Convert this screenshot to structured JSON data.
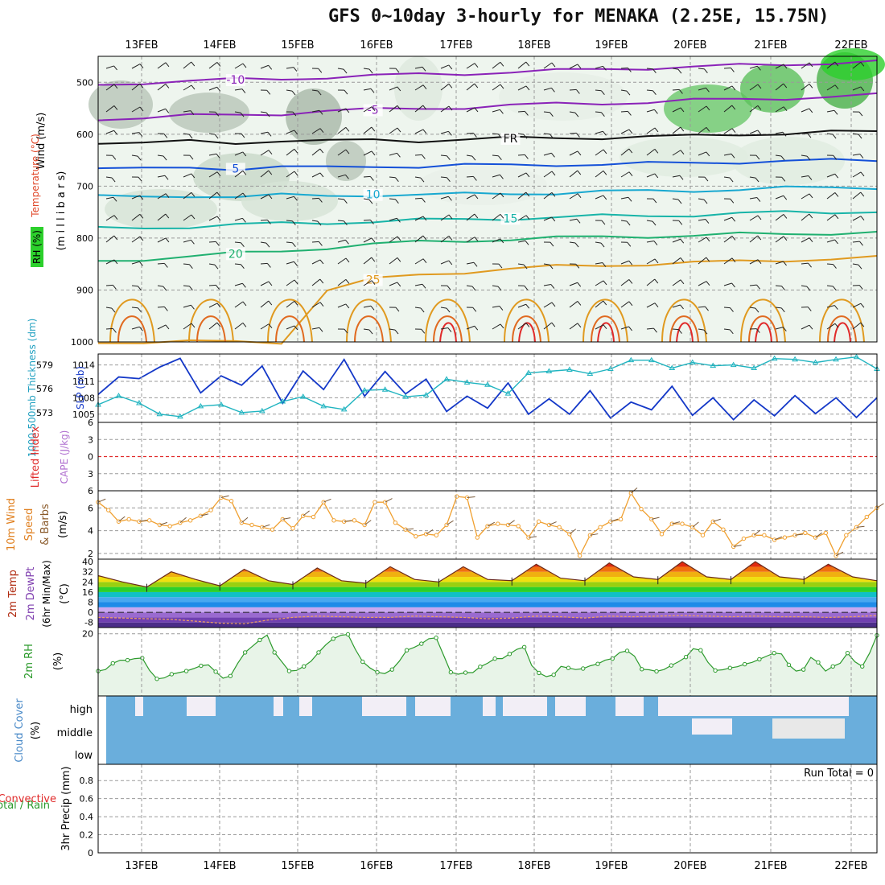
{
  "title": "GFS 0~10day 3-hourly for MENAKA (2.25E, 15.75N)",
  "dates": [
    "13FEB",
    "14FEB",
    "15FEB",
    "16FEB",
    "17FEB",
    "18FEB",
    "19FEB",
    "20FEB",
    "21FEB",
    "22FEB"
  ],
  "colors": {
    "grid": "#9a9a9a",
    "purple": "#8a22b8",
    "blue": "#1450d8",
    "cyan": "#18a8d0",
    "teal": "#18b4a8",
    "green": "#20b070",
    "orange": "#e09a20",
    "red": "#e02a2a",
    "slp": "#1438c8",
    "thick": "#20b4c0",
    "wind10": "#f0a030",
    "rh": "#2c9a2c",
    "cloud": "#6aaedc",
    "cloudbg": "#f2eef6"
  },
  "chart_data": [
    {
      "type": "heatmap",
      "name": "upper-air",
      "ylabel_parts": [
        "RH (%)",
        "Temperature (°C)",
        "Wind (m/s)",
        "(m i l l i b a r s)"
      ],
      "yticks": [
        500,
        600,
        700,
        800,
        900,
        1000
      ],
      "ylim": [
        450,
        1000
      ],
      "contours": [
        {
          "label": "-10",
          "p": [
            505,
            500,
            498,
            495,
            493,
            490,
            488,
            485,
            483,
            480,
            478,
            475,
            472,
            470,
            468,
            466,
            462,
            460
          ],
          "color": "purple"
        },
        {
          "label": "-5",
          "p": [
            570,
            568,
            565,
            563,
            560,
            555,
            553,
            550,
            548,
            545,
            542,
            540,
            538,
            535,
            533,
            530,
            528,
            525
          ],
          "color": "purple"
        },
        {
          "label": "FR",
          "p": [
            615,
            618,
            614,
            616,
            612,
            614,
            611,
            612,
            610,
            608,
            607,
            606,
            605,
            604,
            600,
            598,
            596,
            596
          ],
          "color": "black"
        },
        {
          "label": "5",
          "p": [
            665,
            668,
            664,
            666,
            663,
            665,
            661,
            662,
            660,
            660,
            658,
            658,
            657,
            655,
            653,
            652,
            651,
            650
          ],
          "color": "blue"
        },
        {
          "label": "10",
          "p": [
            720,
            722,
            718,
            720,
            718,
            719,
            716,
            717,
            716,
            714,
            713,
            711,
            710,
            708,
            706,
            704,
            703,
            702
          ],
          "color": "cyan"
        },
        {
          "label": "15",
          "p": [
            782,
            780,
            778,
            775,
            772,
            770,
            768,
            766,
            764,
            762,
            760,
            758,
            757,
            755,
            753,
            751,
            750,
            748
          ],
          "color": "teal"
        },
        {
          "label": "20",
          "p": [
            845,
            840,
            835,
            830,
            825,
            818,
            812,
            808,
            805,
            802,
            800,
            798,
            796,
            795,
            793,
            792,
            790,
            789
          ],
          "color": "green"
        },
        {
          "label": "25",
          "p": [
            1000,
            1000,
            1000,
            1000,
            1000,
            900,
            880,
            870,
            865,
            860,
            855,
            852,
            850,
            848,
            845,
            842,
            840,
            838
          ],
          "color": "orange"
        }
      ]
    },
    {
      "type": "line",
      "name": "slp-thickness",
      "ylabel_left": "1000-500mb Thickness (dm)",
      "ylabel_right": "SLP (mb)",
      "left_ticks": [
        573,
        576,
        579
      ],
      "right_ticks": [
        1005,
        1008,
        1011,
        1014
      ],
      "ylim": [
        1003.5,
        1016
      ],
      "series": [
        {
          "name": "SLP (mb)",
          "values": [
            1008.6,
            1011.8,
            1011.5,
            1013.6,
            1015.2,
            1008.9,
            1012.0,
            1010.3,
            1013.8,
            1007.0,
            1012.9,
            1009.5,
            1015.0,
            1008.3,
            1012.8,
            1008.7,
            1011.4,
            1005.5,
            1008.3,
            1006.1,
            1010.7,
            1005.0,
            1007.8,
            1005.0,
            1009.3,
            1004.3,
            1007.2,
            1005.8,
            1010.1,
            1004.8,
            1008.0,
            1004.0,
            1007.6,
            1004.7,
            1008.4,
            1005.1,
            1008.0,
            1004.4,
            1008.0
          ],
          "color": "slp"
        },
        {
          "name": "1000-500mb Thickness (dm)",
          "values": [
            574.0,
            575.1,
            574.2,
            572.8,
            572.5,
            573.8,
            574.0,
            573.0,
            573.2,
            574.4,
            575.0,
            573.8,
            573.4,
            575.8,
            575.9,
            575.0,
            575.2,
            577.2,
            576.8,
            576.5,
            575.4,
            578.0,
            578.2,
            578.4,
            577.9,
            578.5,
            579.6,
            579.6,
            578.6,
            579.3,
            578.9,
            579.0,
            578.6,
            579.8,
            579.7,
            579.3,
            579.7,
            580.0,
            578.5
          ],
          "color": "thick"
        }
      ]
    },
    {
      "type": "line",
      "name": "lifted-index-cape",
      "ylabel_left": "Lifted Index",
      "ylabel_right": "CAPE (J/kg)",
      "yticks": [
        -6,
        -3,
        0,
        3,
        6
      ],
      "ylim": [
        -6,
        6
      ],
      "series": [
        {
          "name": "Lifted Index",
          "values": [
            0
          ],
          "color": "red"
        }
      ]
    },
    {
      "type": "line",
      "name": "wind10m",
      "ylabel": "10m Wind Speed & Barbs (m/s)",
      "yticks": [
        2,
        4,
        6
      ],
      "ylim": [
        1.5,
        7.5
      ],
      "series": [
        {
          "name": "10m Wind Speed",
          "values": [
            6.5,
            5.8,
            4.8,
            5.0,
            4.8,
            4.9,
            4.5,
            4.4,
            4.7,
            4.9,
            5.3,
            5.8,
            6.9,
            6.6,
            4.7,
            4.5,
            4.3,
            4.1,
            5.0,
            4.2,
            5.3,
            5.2,
            6.5,
            4.9,
            4.8,
            4.9,
            4.5,
            6.5,
            6.5,
            4.7,
            4.1,
            3.5,
            3.7,
            3.6,
            4.5,
            7.0,
            6.9,
            3.4,
            4.4,
            4.6,
            4.5,
            4.4,
            3.4,
            4.8,
            4.5,
            4.3,
            3.7,
            1.8,
            3.6,
            4.3,
            4.8,
            5.0,
            7.3,
            5.9,
            5.0,
            3.7,
            4.6,
            4.6,
            4.3,
            3.6,
            4.8,
            4.1,
            2.6,
            3.3,
            3.6,
            3.6,
            3.2,
            3.4,
            3.6,
            3.8,
            3.4,
            3.8,
            1.8,
            3.6,
            4.3,
            5.2,
            6.0
          ],
          "color": "wind10"
        }
      ]
    },
    {
      "type": "area",
      "name": "temp-dewpt",
      "ylabel": "2m Temp 2m DewPt (6hr Min/Max) (°C)",
      "yticks": [
        -8,
        0,
        8,
        16,
        24,
        32,
        40
      ],
      "ylim": [
        -12,
        42
      ],
      "series": [
        {
          "name": "2m Temp",
          "values": [
            29,
            24,
            20,
            32,
            26,
            21,
            34,
            25,
            22,
            35,
            25,
            23,
            36,
            26,
            24,
            36,
            26,
            25,
            38,
            27,
            25,
            39,
            28,
            26,
            40,
            28,
            26,
            40,
            28,
            26,
            38,
            28,
            25
          ],
          "color": "red"
        },
        {
          "name": "2m DewPt",
          "values": [
            -4,
            -4.5,
            -5,
            -5.5,
            -7,
            -8.5,
            -9,
            -6,
            -4,
            -3,
            -3.5,
            -4,
            -4,
            -3,
            -3.5,
            -4,
            -5,
            -4.5,
            -3,
            -3.5,
            -4.5,
            -3,
            -3.5,
            -3,
            -2.5,
            -3,
            -3.5,
            -3,
            -3.5,
            -3.5,
            -4,
            -3.5,
            -2.5
          ],
          "color": "purple"
        }
      ]
    },
    {
      "type": "area",
      "name": "rh2m",
      "ylabel": "2m RH (%)",
      "yticks": [
        20
      ],
      "ylim": [
        0,
        22
      ],
      "series": [
        {
          "name": "2m RH",
          "values": [
            8,
            8.5,
            10.5,
            11.5,
            11.5,
            12,
            12.2,
            8.2,
            5.5,
            5.8,
            7,
            7.5,
            8,
            8.8,
            9.7,
            10,
            7.8,
            5.7,
            6.4,
            10.5,
            14,
            16,
            18,
            19.6,
            14,
            11,
            8,
            8.2,
            9.5,
            11.2,
            14,
            16.5,
            18.4,
            19.5,
            19.8,
            15,
            11,
            9,
            7.6,
            7.2,
            8.5,
            11.2,
            14.7,
            15.6,
            16.8,
            18.4,
            18.7,
            13.2,
            7.6,
            7,
            7.5,
            7.5,
            9.4,
            10.5,
            12,
            12,
            13.5,
            15,
            15.7,
            9.8,
            7.4,
            6.2,
            6.8,
            9.5,
            9,
            8.5,
            8.8,
            9.7,
            10.3,
            11.5,
            12,
            14,
            14.5,
            12.8,
            8.6,
            8.4,
            7.9,
            8.5,
            9.8,
            11,
            12.5,
            15.2,
            14.7,
            10.8,
            8.2,
            8.4,
            9,
            9.4,
            10.2,
            10.8,
            11.8,
            12.8,
            13.8,
            13.5,
            10,
            8,
            8.5,
            12.4,
            10.8,
            8,
            9.5,
            10.5,
            13.8,
            11,
            9.5,
            13.8,
            19.5
          ],
          "color": "rh"
        }
      ]
    },
    {
      "type": "heatmap",
      "name": "cloud-cover",
      "ylabel": "Cloud Cover (%)",
      "yticks": [
        "high",
        "middle",
        "low"
      ]
    },
    {
      "type": "bar",
      "name": "precip",
      "ylabel_left": "Total / Rain",
      "ylabel_right": "Convective",
      "ylabel": "3hr Precip (mm)",
      "yticks": [
        0,
        0.2,
        0.4,
        0.6,
        0.8
      ],
      "ylim": [
        0,
        0.98
      ],
      "annotation": "Run Total = 0",
      "values": []
    }
  ]
}
